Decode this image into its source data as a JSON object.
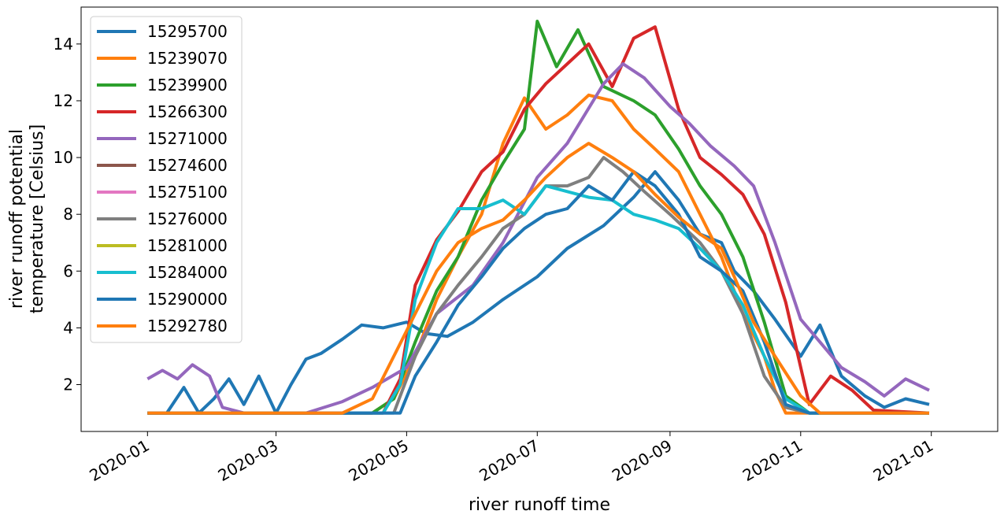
{
  "chart_data": {
    "type": "line",
    "xlabel": "river runoff time",
    "ylabel_lines": [
      "river runoff potential",
      "temperature [Celsius]"
    ],
    "x_range": [
      "2019-12-01",
      "2021-02-01"
    ],
    "ylim": [
      0.35,
      15.3
    ],
    "x_ticks": [
      "2020-01",
      "2020-03",
      "2020-05",
      "2020-07",
      "2020-09",
      "2020-11",
      "2021-01"
    ],
    "y_ticks": [
      2,
      4,
      6,
      8,
      10,
      12,
      14
    ],
    "grid": false,
    "legend_position": "upper-left",
    "series": [
      {
        "name": "15295700",
        "color": "#1f77b4",
        "points": [
          [
            "2020-01-01",
            1
          ],
          [
            "2020-01-10",
            1
          ],
          [
            "2020-01-18",
            1.9
          ],
          [
            "2020-01-25",
            1
          ],
          [
            "2020-02-01",
            1.5
          ],
          [
            "2020-02-08",
            2.2
          ],
          [
            "2020-02-15",
            1.3
          ],
          [
            "2020-02-22",
            2.3
          ],
          [
            "2020-03-01",
            1
          ],
          [
            "2020-03-08",
            2.0
          ],
          [
            "2020-03-15",
            2.9
          ],
          [
            "2020-03-22",
            3.1
          ],
          [
            "2020-04-01",
            3.6
          ],
          [
            "2020-04-10",
            4.1
          ],
          [
            "2020-04-20",
            4.0
          ],
          [
            "2020-05-01",
            4.2
          ],
          [
            "2020-05-10",
            3.8
          ],
          [
            "2020-05-20",
            3.7
          ],
          [
            "2020-06-01",
            4.2
          ],
          [
            "2020-06-15",
            5.0
          ],
          [
            "2020-07-01",
            5.8
          ],
          [
            "2020-07-15",
            6.8
          ],
          [
            "2020-08-01",
            7.6
          ],
          [
            "2020-08-15",
            8.6
          ],
          [
            "2020-08-25",
            9.5
          ],
          [
            "2020-09-05",
            8.5
          ],
          [
            "2020-09-15",
            7.3
          ],
          [
            "2020-09-25",
            7.0
          ],
          [
            "2020-10-01",
            6.0
          ],
          [
            "2020-10-10",
            5.3
          ],
          [
            "2020-10-20",
            4.3
          ],
          [
            "2020-11-01",
            3.0
          ],
          [
            "2020-11-10",
            4.1
          ],
          [
            "2020-11-20",
            2.3
          ],
          [
            "2020-12-01",
            1.6
          ],
          [
            "2020-12-10",
            1.2
          ],
          [
            "2020-12-20",
            1.5
          ],
          [
            "2020-12-31",
            1.3
          ]
        ]
      },
      {
        "name": "15239070",
        "color": "#ff7f0e",
        "points": [
          [
            "2020-01-01",
            1
          ],
          [
            "2020-04-15",
            1
          ],
          [
            "2020-04-25",
            1.5
          ],
          [
            "2020-05-05",
            3.0
          ],
          [
            "2020-05-15",
            5.0
          ],
          [
            "2020-05-25",
            6.5
          ],
          [
            "2020-06-05",
            8.0
          ],
          [
            "2020-06-15",
            10.5
          ],
          [
            "2020-06-25",
            12.1
          ],
          [
            "2020-07-05",
            11.0
          ],
          [
            "2020-07-15",
            11.5
          ],
          [
            "2020-07-25",
            12.2
          ],
          [
            "2020-08-05",
            12.0
          ],
          [
            "2020-08-15",
            11.0
          ],
          [
            "2020-08-25",
            10.3
          ],
          [
            "2020-09-05",
            9.5
          ],
          [
            "2020-09-15",
            8.0
          ],
          [
            "2020-09-25",
            6.5
          ],
          [
            "2020-10-05",
            4.5
          ],
          [
            "2020-10-15",
            3.0
          ],
          [
            "2020-10-20",
            1.8
          ],
          [
            "2020-10-25",
            1
          ],
          [
            "2020-12-31",
            1
          ]
        ]
      },
      {
        "name": "15239900",
        "color": "#2ca02c",
        "points": [
          [
            "2020-01-01",
            1
          ],
          [
            "2020-04-15",
            1
          ],
          [
            "2020-04-25",
            1.5
          ],
          [
            "2020-05-05",
            3.5
          ],
          [
            "2020-05-15",
            5.3
          ],
          [
            "2020-05-25",
            6.5
          ],
          [
            "2020-06-05",
            8.5
          ],
          [
            "2020-06-15",
            9.8
          ],
          [
            "2020-06-25",
            11.0
          ],
          [
            "2020-07-01",
            14.8
          ],
          [
            "2020-07-10",
            13.2
          ],
          [
            "2020-07-20",
            14.5
          ],
          [
            "2020-08-01",
            12.5
          ],
          [
            "2020-08-15",
            12.0
          ],
          [
            "2020-08-25",
            11.5
          ],
          [
            "2020-09-05",
            10.3
          ],
          [
            "2020-09-15",
            9.0
          ],
          [
            "2020-09-25",
            8.0
          ],
          [
            "2020-10-05",
            6.5
          ],
          [
            "2020-10-15",
            4.2
          ],
          [
            "2020-10-25",
            1.6
          ],
          [
            "2020-11-05",
            1
          ],
          [
            "2020-12-31",
            1
          ]
        ]
      },
      {
        "name": "15266300",
        "color": "#d62728",
        "points": [
          [
            "2020-01-01",
            1
          ],
          [
            "2020-04-20",
            1
          ],
          [
            "2020-04-28",
            2.2
          ],
          [
            "2020-05-05",
            5.5
          ],
          [
            "2020-05-15",
            7.1
          ],
          [
            "2020-05-25",
            8.1
          ],
          [
            "2020-06-05",
            9.5
          ],
          [
            "2020-06-15",
            10.2
          ],
          [
            "2020-06-25",
            11.7
          ],
          [
            "2020-07-05",
            12.6
          ],
          [
            "2020-07-15",
            13.3
          ],
          [
            "2020-07-25",
            14.0
          ],
          [
            "2020-08-05",
            12.5
          ],
          [
            "2020-08-15",
            14.2
          ],
          [
            "2020-08-25",
            14.6
          ],
          [
            "2020-09-05",
            11.7
          ],
          [
            "2020-09-15",
            10.0
          ],
          [
            "2020-09-25",
            9.4
          ],
          [
            "2020-10-05",
            8.7
          ],
          [
            "2020-10-15",
            7.3
          ],
          [
            "2020-10-25",
            4.9
          ],
          [
            "2020-11-05",
            1.3
          ],
          [
            "2020-11-15",
            2.3
          ],
          [
            "2020-11-25",
            1.8
          ],
          [
            "2020-12-05",
            1.1
          ],
          [
            "2020-12-31",
            1
          ]
        ]
      },
      {
        "name": "15271000",
        "color": "#9467bd",
        "points": [
          [
            "2020-01-01",
            2.2
          ],
          [
            "2020-01-08",
            2.5
          ],
          [
            "2020-01-15",
            2.2
          ],
          [
            "2020-01-22",
            2.7
          ],
          [
            "2020-01-30",
            2.3
          ],
          [
            "2020-02-05",
            1.2
          ],
          [
            "2020-02-15",
            1
          ],
          [
            "2020-03-15",
            1
          ],
          [
            "2020-04-01",
            1.4
          ],
          [
            "2020-04-15",
            1.9
          ],
          [
            "2020-05-01",
            2.6
          ],
          [
            "2020-05-15",
            4.5
          ],
          [
            "2020-06-01",
            5.5
          ],
          [
            "2020-06-15",
            7.0
          ],
          [
            "2020-07-01",
            9.3
          ],
          [
            "2020-07-15",
            10.5
          ],
          [
            "2020-08-01",
            12.6
          ],
          [
            "2020-08-10",
            13.3
          ],
          [
            "2020-08-20",
            12.8
          ],
          [
            "2020-09-01",
            11.8
          ],
          [
            "2020-09-10",
            11.2
          ],
          [
            "2020-09-20",
            10.4
          ],
          [
            "2020-10-01",
            9.7
          ],
          [
            "2020-10-10",
            9.0
          ],
          [
            "2020-10-20",
            7.0
          ],
          [
            "2020-11-01",
            4.3
          ],
          [
            "2020-11-10",
            3.5
          ],
          [
            "2020-11-20",
            2.6
          ],
          [
            "2020-12-01",
            2.1
          ],
          [
            "2020-12-10",
            1.6
          ],
          [
            "2020-12-20",
            2.2
          ],
          [
            "2020-12-31",
            1.8
          ]
        ]
      },
      {
        "name": "15274600",
        "color": "#8c564b",
        "points": []
      },
      {
        "name": "15275100",
        "color": "#e377c2",
        "points": []
      },
      {
        "name": "15276000",
        "color": "#7f7f7f",
        "points": [
          [
            "2020-01-01",
            1
          ],
          [
            "2020-04-25",
            1
          ],
          [
            "2020-05-05",
            3.0
          ],
          [
            "2020-05-15",
            4.5
          ],
          [
            "2020-05-25",
            5.5
          ],
          [
            "2020-06-05",
            6.5
          ],
          [
            "2020-06-15",
            7.5
          ],
          [
            "2020-06-25",
            8.0
          ],
          [
            "2020-07-05",
            9.0
          ],
          [
            "2020-07-15",
            9.0
          ],
          [
            "2020-07-25",
            9.3
          ],
          [
            "2020-08-01",
            10.0
          ],
          [
            "2020-08-10",
            9.5
          ],
          [
            "2020-08-20",
            8.8
          ],
          [
            "2020-09-01",
            8.0
          ],
          [
            "2020-09-15",
            7.0
          ],
          [
            "2020-09-25",
            6.0
          ],
          [
            "2020-10-05",
            4.5
          ],
          [
            "2020-10-15",
            2.3
          ],
          [
            "2020-10-25",
            1.2
          ],
          [
            "2020-11-05",
            1
          ],
          [
            "2020-12-31",
            1
          ]
        ]
      },
      {
        "name": "15281000",
        "color": "#bcbd22",
        "points": []
      },
      {
        "name": "15284000",
        "color": "#17becf",
        "points": [
          [
            "2020-01-01",
            1
          ],
          [
            "2020-04-20",
            1
          ],
          [
            "2020-04-28",
            2.0
          ],
          [
            "2020-05-05",
            5.0
          ],
          [
            "2020-05-15",
            7.0
          ],
          [
            "2020-05-25",
            8.2
          ],
          [
            "2020-06-05",
            8.2
          ],
          [
            "2020-06-15",
            8.5
          ],
          [
            "2020-06-25",
            8.0
          ],
          [
            "2020-07-05",
            9.0
          ],
          [
            "2020-07-15",
            8.8
          ],
          [
            "2020-07-25",
            8.6
          ],
          [
            "2020-08-05",
            8.5
          ],
          [
            "2020-08-15",
            8.0
          ],
          [
            "2020-08-25",
            7.8
          ],
          [
            "2020-09-05",
            7.5
          ],
          [
            "2020-09-15",
            6.8
          ],
          [
            "2020-09-25",
            6.0
          ],
          [
            "2020-10-05",
            4.8
          ],
          [
            "2020-10-15",
            3.0
          ],
          [
            "2020-10-25",
            1.5
          ],
          [
            "2020-11-05",
            1
          ],
          [
            "2020-12-31",
            1
          ]
        ]
      },
      {
        "name": "15290000",
        "color": "#1f77b4",
        "points": [
          [
            "2020-01-01",
            1
          ],
          [
            "2020-04-28",
            1
          ],
          [
            "2020-05-05",
            2.3
          ],
          [
            "2020-05-15",
            3.5
          ],
          [
            "2020-05-25",
            4.8
          ],
          [
            "2020-06-05",
            5.8
          ],
          [
            "2020-06-15",
            6.8
          ],
          [
            "2020-06-25",
            7.5
          ],
          [
            "2020-07-05",
            8.0
          ],
          [
            "2020-07-15",
            8.2
          ],
          [
            "2020-07-25",
            9.0
          ],
          [
            "2020-08-05",
            8.5
          ],
          [
            "2020-08-15",
            9.5
          ],
          [
            "2020-08-25",
            9.0
          ],
          [
            "2020-09-05",
            8.0
          ],
          [
            "2020-09-15",
            6.5
          ],
          [
            "2020-09-25",
            6.0
          ],
          [
            "2020-10-05",
            5.3
          ],
          [
            "2020-10-15",
            3.5
          ],
          [
            "2020-10-25",
            1.3
          ],
          [
            "2020-11-05",
            1
          ],
          [
            "2020-12-31",
            1
          ]
        ]
      },
      {
        "name": "15292780",
        "color": "#ff7f0e",
        "points": [
          [
            "2020-01-01",
            1
          ],
          [
            "2020-04-01",
            1
          ],
          [
            "2020-04-15",
            1.5
          ],
          [
            "2020-04-25",
            3.0
          ],
          [
            "2020-05-05",
            4.5
          ],
          [
            "2020-05-15",
            6.0
          ],
          [
            "2020-05-25",
            7.0
          ],
          [
            "2020-06-05",
            7.5
          ],
          [
            "2020-06-15",
            7.8
          ],
          [
            "2020-06-25",
            8.5
          ],
          [
            "2020-07-05",
            9.3
          ],
          [
            "2020-07-15",
            10.0
          ],
          [
            "2020-07-25",
            10.5
          ],
          [
            "2020-08-05",
            10.0
          ],
          [
            "2020-08-15",
            9.5
          ],
          [
            "2020-08-25",
            8.7
          ],
          [
            "2020-09-05",
            7.9
          ],
          [
            "2020-09-15",
            7.3
          ],
          [
            "2020-09-25",
            6.8
          ],
          [
            "2020-10-01",
            5.8
          ],
          [
            "2020-10-10",
            4.2
          ],
          [
            "2020-10-20",
            3.0
          ],
          [
            "2020-11-01",
            1.6
          ],
          [
            "2020-11-10",
            1
          ],
          [
            "2020-12-31",
            1
          ]
        ]
      }
    ]
  }
}
